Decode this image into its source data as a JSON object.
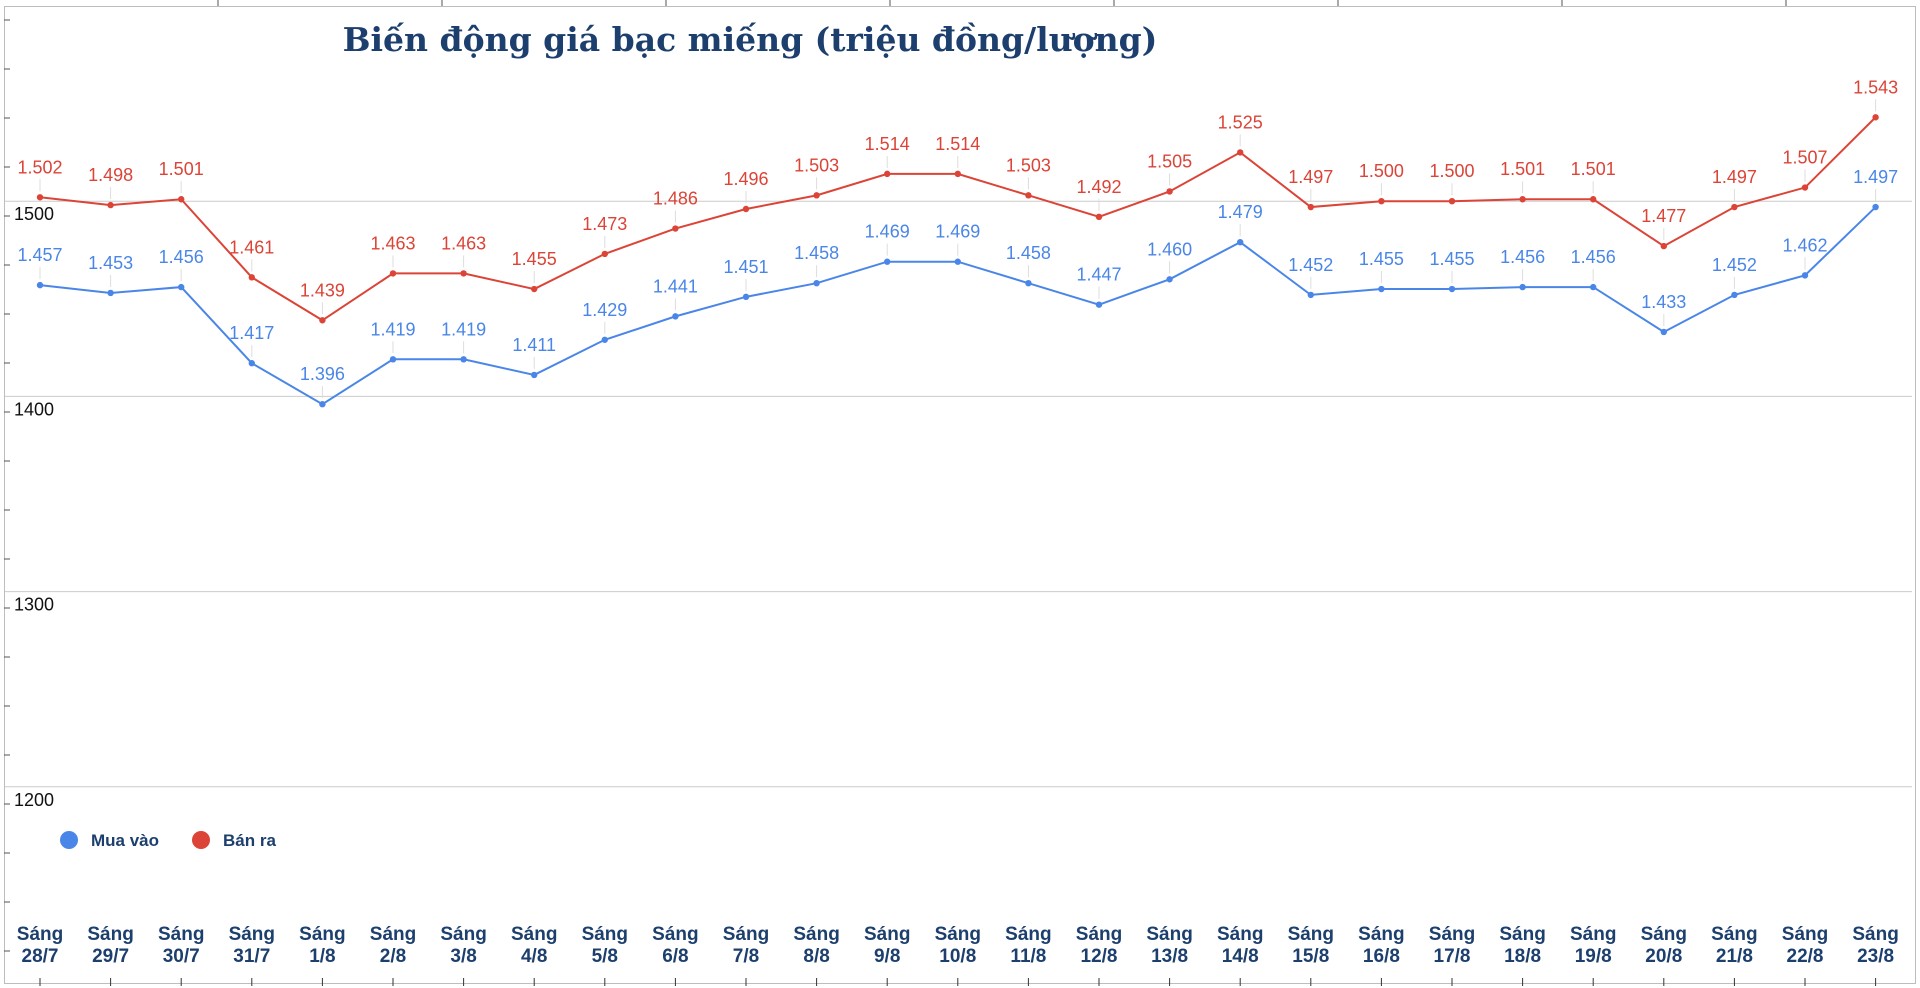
{
  "chart_data": {
    "type": "line",
    "title": "Biến động giá bạc miếng (triệu đồng/lượng)",
    "categories": [
      "Sáng|28/7",
      "Sáng|29/7",
      "Sáng|30/7",
      "Sáng|31/7",
      "Sáng|1/8",
      "Sáng|2/8",
      "Sáng|3/8",
      "Sáng|4/8",
      "Sáng|5/8",
      "Sáng|6/8",
      "Sáng|7/8",
      "Sáng|8/8",
      "Sáng|9/8",
      "Sáng|10/8",
      "Sáng|11/8",
      "Sáng|12/8",
      "Sáng|13/8",
      "Sáng|14/8",
      "Sáng|15/8",
      "Sáng|16/8",
      "Sáng|17/8",
      "Sáng|18/8",
      "Sáng|19/8",
      "Sáng|20/8",
      "Sáng|21/8",
      "Sáng|22/8",
      "Sáng|23/8"
    ],
    "series": [
      {
        "name": "Mua vào",
        "color": "#4a86e8",
        "values": [
          1457,
          1453,
          1456,
          1417,
          1396,
          1419,
          1419,
          1411,
          1429,
          1441,
          1451,
          1458,
          1469,
          1469,
          1458,
          1447,
          1460,
          1479,
          1452,
          1455,
          1455,
          1456,
          1456,
          1433,
          1452,
          1462,
          1497
        ],
        "labels": [
          "1.457",
          "1.453",
          "1.456",
          "1.417",
          "1.396",
          "1.419",
          "1.419",
          "1.411",
          "1.429",
          "1.441",
          "1.451",
          "1.458",
          "1.469",
          "1.469",
          "1.458",
          "1.447",
          "1.460",
          "1.479",
          "1.452",
          "1.455",
          "1.455",
          "1.456",
          "1.456",
          "1.433",
          "1.452",
          "1.462",
          "1.497"
        ]
      },
      {
        "name": "Bán ra",
        "color": "#db4437",
        "values": [
          1502,
          1498,
          1501,
          1461,
          1439,
          1463,
          1463,
          1455,
          1473,
          1486,
          1496,
          1503,
          1514,
          1514,
          1503,
          1492,
          1505,
          1525,
          1497,
          1500,
          1500,
          1501,
          1501,
          1477,
          1497,
          1507,
          1543
        ],
        "labels": [
          "1.502",
          "1.498",
          "1.501",
          "1.461",
          "1.439",
          "1.463",
          "1.463",
          "1.455",
          "1.473",
          "1.486",
          "1.496",
          "1.503",
          "1.514",
          "1.514",
          "1.503",
          "1.492",
          "1.505",
          "1.525",
          "1.497",
          "1.500",
          "1.500",
          "1.501",
          "1.501",
          "1.477",
          "1.497",
          "1.507",
          "1.543"
        ]
      }
    ],
    "y_ticks": [
      "1200",
      "1300",
      "1400",
      "1500"
    ],
    "y_tick_values": [
      1200,
      1300,
      1400,
      1500
    ],
    "ylim": [
      1100,
      1600
    ],
    "grid": true,
    "legend_position": "bottom-left",
    "title_color": "#1c3f6e",
    "label_color": "#1c3f6e"
  }
}
